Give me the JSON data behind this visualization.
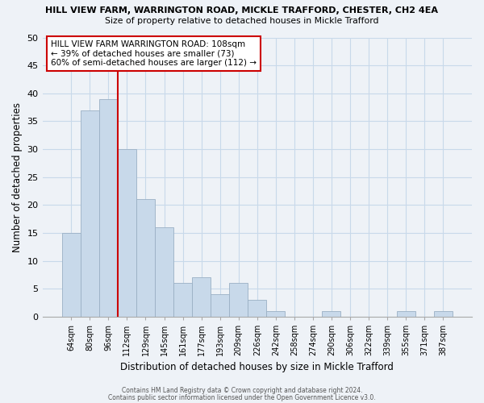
{
  "title_line1": "HILL VIEW FARM, WARRINGTON ROAD, MICKLE TRAFFORD, CHESTER, CH2 4EA",
  "title_line2": "Size of property relative to detached houses in Mickle Trafford",
  "xlabel": "Distribution of detached houses by size in Mickle Trafford",
  "ylabel": "Number of detached properties",
  "bar_labels": [
    "64sqm",
    "80sqm",
    "96sqm",
    "112sqm",
    "129sqm",
    "145sqm",
    "161sqm",
    "177sqm",
    "193sqm",
    "209sqm",
    "226sqm",
    "242sqm",
    "258sqm",
    "274sqm",
    "290sqm",
    "306sqm",
    "322sqm",
    "339sqm",
    "355sqm",
    "371sqm",
    "387sqm"
  ],
  "bar_values": [
    15,
    37,
    39,
    30,
    21,
    16,
    6,
    7,
    4,
    6,
    3,
    1,
    0,
    0,
    1,
    0,
    0,
    0,
    1,
    0,
    1
  ],
  "bar_color": "#c8d9ea",
  "bar_edge_color": "#9ab0c4",
  "grid_color": "#c8d9ea",
  "vline_color": "#cc0000",
  "annotation_text": "HILL VIEW FARM WARRINGTON ROAD: 108sqm\n← 39% of detached houses are smaller (73)\n60% of semi-detached houses are larger (112) →",
  "annotation_box_edge": "#cc0000",
  "ylim": [
    0,
    50
  ],
  "yticks": [
    0,
    5,
    10,
    15,
    20,
    25,
    30,
    35,
    40,
    45,
    50
  ],
  "footer_line1": "Contains HM Land Registry data © Crown copyright and database right 2024.",
  "footer_line2": "Contains public sector information licensed under the Open Government Licence v3.0.",
  "bg_color": "#eef2f7"
}
